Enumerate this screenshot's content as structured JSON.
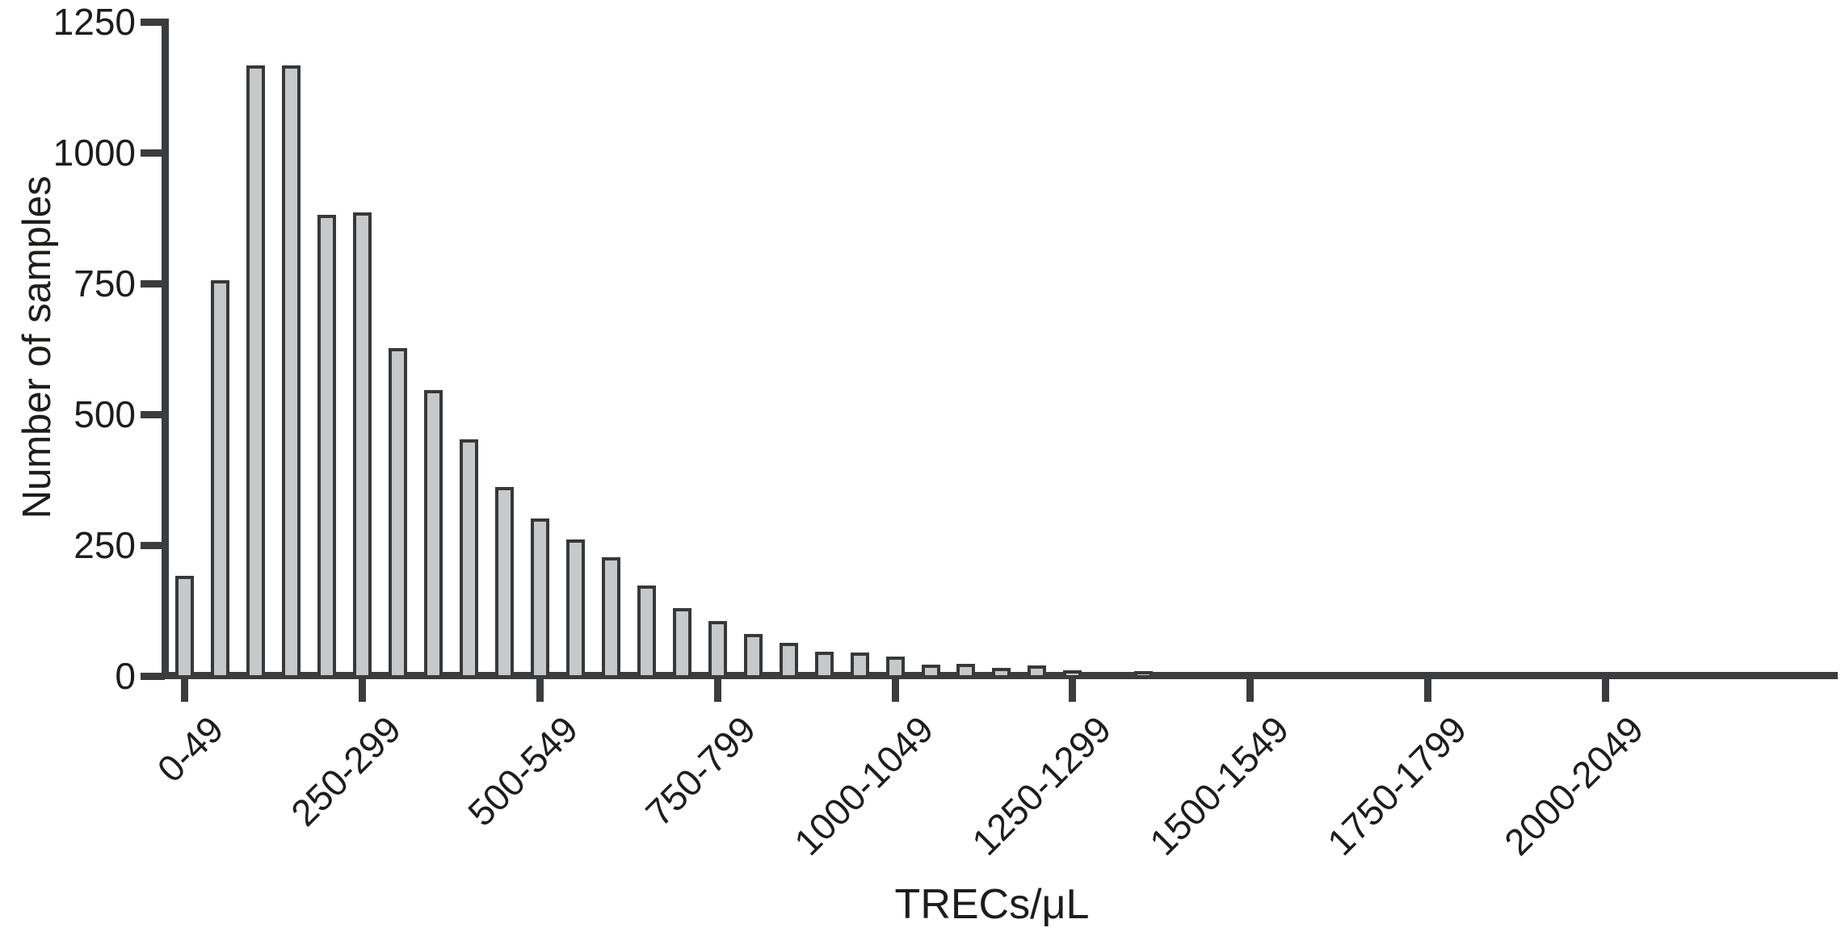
{
  "chart_data": {
    "type": "bar",
    "title": "",
    "xlabel": "TRECs/μL",
    "ylabel": "Number of samples",
    "bin_width": 50,
    "values": [
      190,
      755,
      1165,
      1165,
      880,
      885,
      625,
      545,
      450,
      360,
      300,
      260,
      225,
      172,
      128,
      103,
      78,
      62,
      45,
      43,
      35,
      20,
      22,
      14,
      18,
      10,
      0,
      8,
      0,
      0,
      0,
      0,
      0,
      0,
      0,
      0,
      0,
      0,
      0,
      0,
      0,
      0,
      0,
      0,
      0,
      0
    ],
    "x_tick_labels": [
      "0-49",
      "250-299",
      "500-549",
      "750-799",
      "1000-1049",
      "1250-1299",
      "1500-1549",
      "1750-1799",
      "2000-2049"
    ],
    "x_tick_every": 5,
    "y_ticks": [
      0,
      250,
      500,
      750,
      1000,
      1250
    ],
    "ylim": [
      0,
      1250
    ],
    "grid": false,
    "legend": "none",
    "bar_fill": "#c6c8c9",
    "bar_stroke": "#363839",
    "axis_color": "#3a3c3e",
    "text_color": "#1d1d1b"
  }
}
